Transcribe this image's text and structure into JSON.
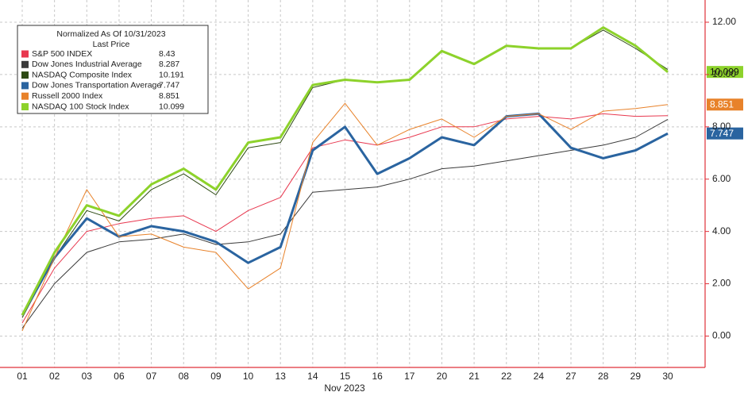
{
  "chart_data": {
    "type": "line",
    "legend_title": "Normalized As Of 10/31/2023",
    "legend_subtitle": "Last Price",
    "x_label": "Nov 2023",
    "categories": [
      "01",
      "02",
      "03",
      "06",
      "07",
      "08",
      "09",
      "10",
      "13",
      "14",
      "15",
      "16",
      "17",
      "20",
      "21",
      "22",
      "24",
      "27",
      "28",
      "29",
      "30"
    ],
    "ylim": [
      -1.2,
      12.85
    ],
    "yticks": [
      {
        "value": 0,
        "label": "0.00"
      },
      {
        "value": 2,
        "label": "2.00"
      },
      {
        "value": 4,
        "label": "4.00"
      },
      {
        "value": 6,
        "label": "6.00"
      },
      {
        "value": 8,
        "label": "8.00"
      },
      {
        "value": 10,
        "label": "10.00"
      },
      {
        "value": 12,
        "label": "12.00"
      }
    ],
    "grid": true,
    "legend": "upper left",
    "series": [
      {
        "name": "S&P 500 INDEX",
        "color": "#e8384f",
        "line_width": 1,
        "tag": false,
        "values": [
          0.5,
          2.6,
          4.0,
          4.3,
          4.5,
          4.6,
          4.0,
          4.8,
          5.3,
          7.2,
          7.5,
          7.3,
          7.6,
          8.0,
          8.0,
          8.3,
          8.4,
          8.3,
          8.5,
          8.4,
          8.43
        ]
      },
      {
        "name": "Dow Jones Industrial Average",
        "color": "#3a3a3a",
        "line_width": 1,
        "tag": false,
        "values": [
          0.3,
          2.0,
          3.2,
          3.6,
          3.7,
          3.9,
          3.5,
          3.6,
          3.9,
          5.5,
          5.6,
          5.7,
          6.0,
          6.4,
          6.5,
          6.7,
          6.9,
          7.1,
          7.3,
          7.6,
          8.287
        ]
      },
      {
        "name": "NASDAQ Composite Index",
        "color": "#2d4a14",
        "line_width": 1,
        "tag": false,
        "values": [
          0.7,
          3.0,
          4.8,
          4.4,
          5.6,
          6.2,
          5.4,
          7.2,
          7.4,
          9.5,
          9.8,
          9.7,
          9.8,
          10.9,
          10.4,
          11.1,
          11.0,
          11.0,
          11.7,
          11.0,
          10.191
        ]
      },
      {
        "name": "Dow Jones Transportation Average",
        "color": "#2a64a0",
        "line_width": 3,
        "tag": true,
        "values": [
          0.8,
          3.0,
          4.5,
          3.8,
          4.2,
          4.0,
          3.6,
          2.8,
          3.4,
          7.1,
          8.0,
          6.2,
          6.8,
          7.6,
          7.3,
          8.4,
          8.5,
          7.2,
          6.8,
          7.1,
          7.747
        ]
      },
      {
        "name": "Russell 2000 Index",
        "color": "#e8822a",
        "line_width": 1,
        "tag": true,
        "values": [
          0.2,
          3.0,
          5.6,
          3.8,
          3.9,
          3.4,
          3.2,
          1.8,
          2.6,
          7.4,
          8.9,
          7.3,
          7.9,
          8.3,
          7.6,
          8.4,
          8.5,
          7.9,
          8.6,
          8.7,
          8.851
        ]
      },
      {
        "name": "NASDAQ 100 Stock Index",
        "color": "#8dd22b",
        "line_width": 3,
        "tag": true,
        "values": [
          0.8,
          3.2,
          5.0,
          4.6,
          5.8,
          6.4,
          5.6,
          7.4,
          7.6,
          9.6,
          9.8,
          9.7,
          9.8,
          10.9,
          10.4,
          11.1,
          11.0,
          11.0,
          11.8,
          11.1,
          10.099
        ]
      }
    ]
  }
}
